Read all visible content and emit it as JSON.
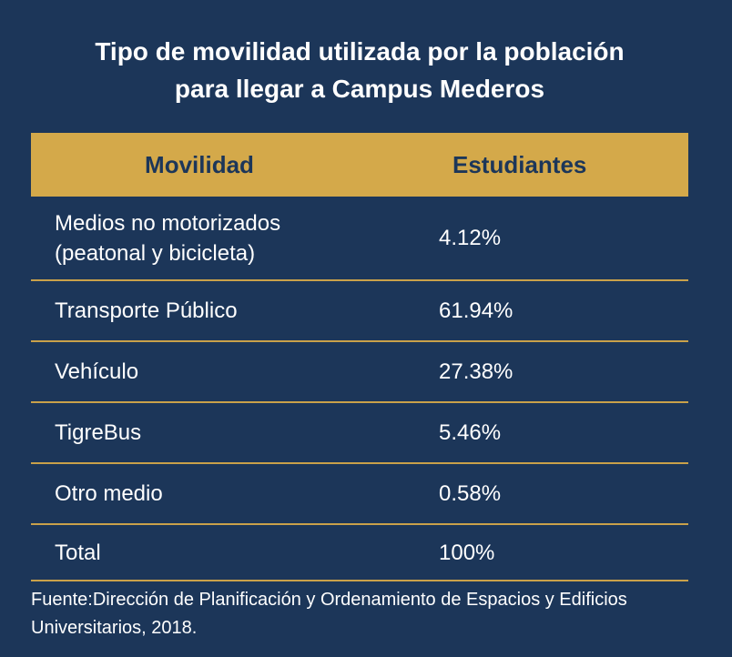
{
  "title_line1": "Tipo de movilidad utilizada por la población",
  "title_line2": "para llegar a Campus Mederos",
  "chart_data": {
    "type": "table",
    "columns": [
      "Movilidad",
      "Estudiantes"
    ],
    "rows": [
      {
        "label_line1": "Medios no motorizados",
        "label_line2": "(peatonal y bicicleta)",
        "value": "4.12%"
      },
      {
        "label": "Transporte Público",
        "value": "61.94%"
      },
      {
        "label": "Vehículo",
        "value": "27.38%"
      },
      {
        "label": "TigreBus",
        "value": "5.46%"
      },
      {
        "label": "Otro medio",
        "value": "0.58%"
      },
      {
        "label": "Total",
        "value": "100%"
      }
    ]
  },
  "source_line1": "Fuente:Dirección de Planificación y Ordenamiento de Espacios y Edificios",
  "source_line2": "Universitarios, 2018.",
  "colors": {
    "background": "#1c3659",
    "header": "#d4a94a",
    "rule": "#c9a14a"
  }
}
